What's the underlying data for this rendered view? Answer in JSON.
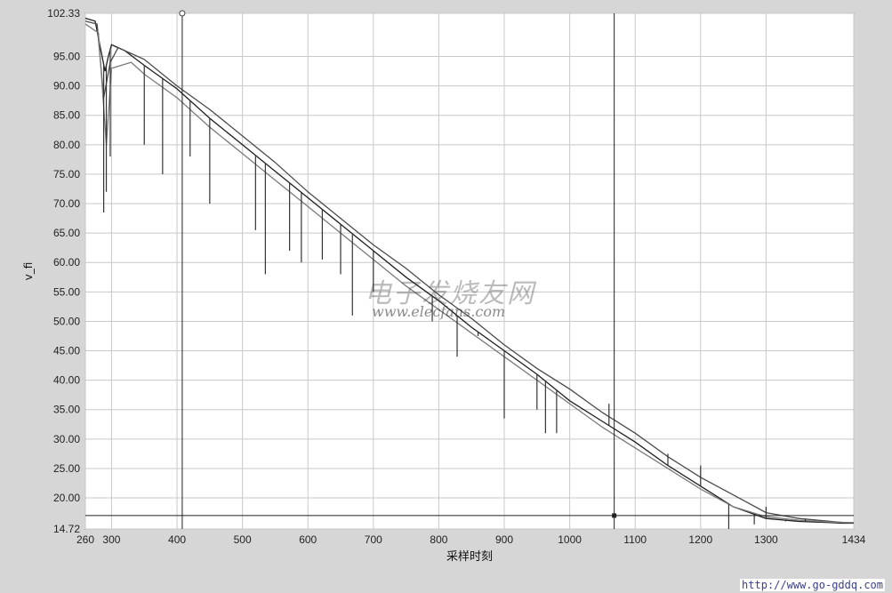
{
  "chart_data": {
    "type": "line",
    "title": "",
    "xlabel": "采样时刻",
    "ylabel": "v_fi",
    "xlim": [
      260,
      1434
    ],
    "ylim": [
      14.72,
      102.33
    ],
    "x_ticks": [
      {
        "value": 260,
        "label": "260"
      },
      {
        "value": 300,
        "label": "300"
      },
      {
        "value": 400,
        "label": "400"
      },
      {
        "value": 500,
        "label": "500"
      },
      {
        "value": 600,
        "label": "600"
      },
      {
        "value": 700,
        "label": "700"
      },
      {
        "value": 800,
        "label": "800"
      },
      {
        "value": 900,
        "label": "900"
      },
      {
        "value": 1000,
        "label": "1000"
      },
      {
        "value": 1100,
        "label": "1100"
      },
      {
        "value": 1200,
        "label": "1200"
      },
      {
        "value": 1300,
        "label": "1300"
      },
      {
        "value": 1434,
        "label": "1434"
      }
    ],
    "y_ticks": [
      {
        "value": 14.72,
        "label": "14.72"
      },
      {
        "value": 20,
        "label": "20.00"
      },
      {
        "value": 25,
        "label": "25.00"
      },
      {
        "value": 30,
        "label": "30.00"
      },
      {
        "value": 35,
        "label": "35.00"
      },
      {
        "value": 40,
        "label": "40.00"
      },
      {
        "value": 45,
        "label": "45.00"
      },
      {
        "value": 50,
        "label": "50.00"
      },
      {
        "value": 55,
        "label": "55.00"
      },
      {
        "value": 60,
        "label": "60.00"
      },
      {
        "value": 65,
        "label": "65.00"
      },
      {
        "value": 70,
        "label": "70.00"
      },
      {
        "value": 75,
        "label": "75.00"
      },
      {
        "value": 80,
        "label": "80.00"
      },
      {
        "value": 85,
        "label": "85.00"
      },
      {
        "value": 90,
        "label": "90.00"
      },
      {
        "value": 95,
        "label": "95.00"
      },
      {
        "value": 102.33,
        "label": "102.33"
      }
    ],
    "grid": true,
    "cursors": {
      "vertical_x": [
        408,
        1068
      ],
      "horizontal_y": 17.0
    },
    "series": [
      {
        "color": "#1e1e1e",
        "x": [
          260,
          275,
          282,
          290,
          295,
          300,
          320,
          350,
          400,
          450,
          500,
          550,
          600,
          650,
          700,
          750,
          800,
          850,
          900,
          950,
          1000,
          1050,
          1100,
          1150,
          1200,
          1250,
          1300,
          1350,
          1400,
          1415,
          1434
        ],
        "y": [
          101.5,
          101.0,
          97.0,
          92.5,
          95.0,
          97.0,
          96.0,
          93.5,
          89.5,
          84.5,
          80.0,
          75.5,
          71.0,
          66.5,
          62.0,
          57.5,
          53.5,
          49.0,
          45.0,
          41.0,
          36.5,
          33.0,
          29.5,
          25.5,
          22.0,
          18.5,
          16.5,
          16.0,
          15.8,
          15.7,
          15.7
        ]
      },
      {
        "color": "#4a4a4a",
        "x": [
          260,
          278,
          288,
          298,
          310,
          350,
          400,
          450,
          500,
          550,
          600,
          650,
          700,
          750,
          800,
          850,
          900,
          950,
          1000,
          1050,
          1100,
          1150,
          1200,
          1250,
          1300,
          1350,
          1400,
          1420,
          1434
        ],
        "y": [
          101.0,
          100.5,
          88.0,
          94.0,
          96.5,
          94.5,
          90.0,
          86.0,
          81.5,
          77.0,
          72.0,
          67.5,
          63.0,
          59.0,
          54.5,
          50.5,
          46.0,
          42.0,
          38.5,
          34.5,
          31.0,
          27.0,
          23.5,
          20.5,
          17.5,
          16.5,
          16.0,
          15.8,
          15.8
        ]
      },
      {
        "color": "#7a7a7a",
        "x": [
          260,
          280,
          292,
          300,
          330,
          350,
          400,
          450,
          500,
          550,
          600,
          650,
          700,
          750,
          800,
          850,
          900,
          950,
          1000,
          1050,
          1100,
          1150,
          1200,
          1250,
          1300,
          1350,
          1400,
          1434
        ],
        "y": [
          100.5,
          99.0,
          80.0,
          93.0,
          94.0,
          92.0,
          88.0,
          83.0,
          78.5,
          74.0,
          69.5,
          65.0,
          60.5,
          56.0,
          52.0,
          48.0,
          44.0,
          40.0,
          36.0,
          32.0,
          28.5,
          25.0,
          21.5,
          18.5,
          16.8,
          16.2,
          15.9,
          15.8
        ]
      }
    ],
    "spikes": [
      {
        "x": 288,
        "y": 68.5
      },
      {
        "x": 292,
        "y": 72.0
      },
      {
        "x": 298,
        "y": 78.0
      },
      {
        "x": 350,
        "y": 80.0
      },
      {
        "x": 378,
        "y": 75.0
      },
      {
        "x": 420,
        "y": 78.0
      },
      {
        "x": 450,
        "y": 70.0
      },
      {
        "x": 520,
        "y": 65.5
      },
      {
        "x": 535,
        "y": 58.0
      },
      {
        "x": 572,
        "y": 62.0
      },
      {
        "x": 590,
        "y": 60.0
      },
      {
        "x": 622,
        "y": 60.5
      },
      {
        "x": 650,
        "y": 58.0
      },
      {
        "x": 668,
        "y": 51.0
      },
      {
        "x": 700,
        "y": 55.0
      },
      {
        "x": 790,
        "y": 50.0
      },
      {
        "x": 828,
        "y": 44.0
      },
      {
        "x": 860,
        "y": 47.5
      },
      {
        "x": 900,
        "y": 33.5
      },
      {
        "x": 950,
        "y": 35.0
      },
      {
        "x": 963,
        "y": 31.0
      },
      {
        "x": 980,
        "y": 31.0
      },
      {
        "x": 1060,
        "y": 36.0
      },
      {
        "x": 1150,
        "y": 27.5
      },
      {
        "x": 1200,
        "y": 25.5
      },
      {
        "x": 1243,
        "y": 14.72
      },
      {
        "x": 1282,
        "y": 15.5
      },
      {
        "x": 1300,
        "y": 18.5
      },
      {
        "x": 1330,
        "y": 16.0
      },
      {
        "x": 1360,
        "y": 16.5
      }
    ]
  },
  "watermark": {
    "cn_text": "电子发烧友网",
    "url_text": "www.elecfans.com"
  },
  "source_url": "http://www.go-gddq.com"
}
